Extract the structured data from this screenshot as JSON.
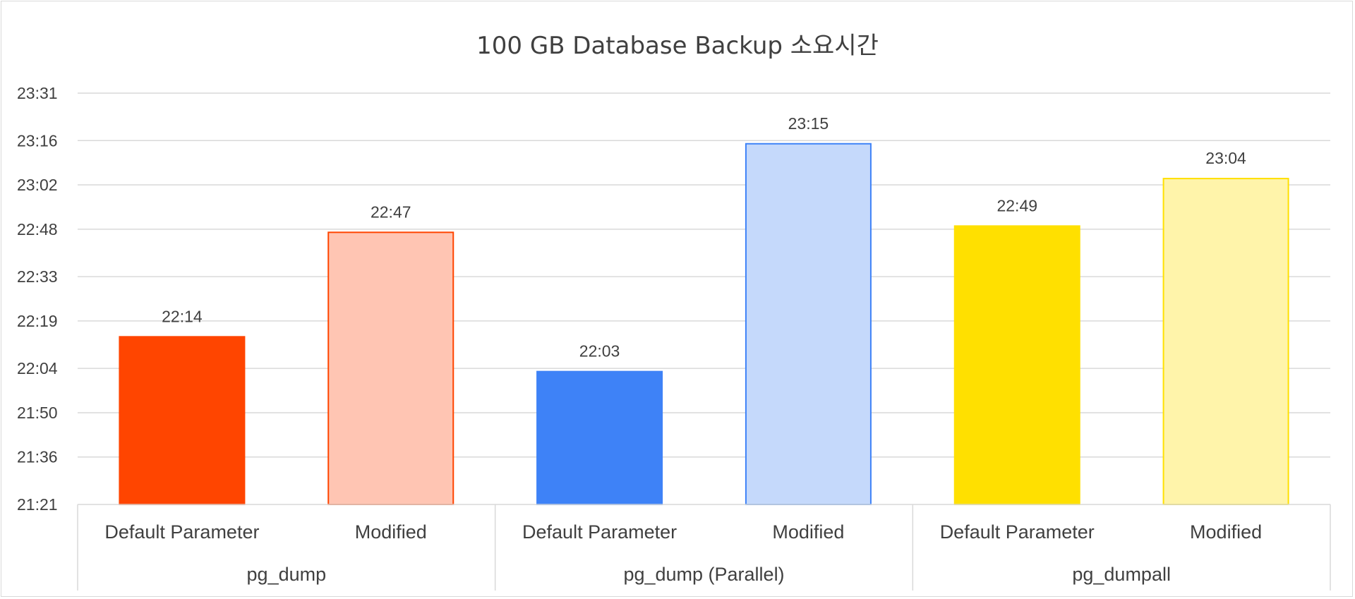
{
  "chart_data": {
    "type": "bar",
    "title": "100 GB Database Backup 소요시간",
    "xlabel": "",
    "ylabel": "",
    "y_unit": "time (HH:MM)",
    "ylim": [
      "21:21",
      "23:31"
    ],
    "y_ticks": [
      "21:21",
      "21:36",
      "21:50",
      "22:04",
      "22:19",
      "22:33",
      "22:48",
      "23:02",
      "23:16",
      "23:31"
    ],
    "grid": true,
    "legend": "none",
    "groups": [
      {
        "label": "pg_dump",
        "bars": [
          {
            "label": "Default Parameter",
            "value": "22:14",
            "fill": "#FF4500",
            "stroke": "#FF4500"
          },
          {
            "label": "Modified",
            "value": "22:47",
            "fill": "#FFC5B3",
            "stroke": "#FF4500"
          }
        ]
      },
      {
        "label": "pg_dump (Parallel)",
        "bars": [
          {
            "label": "Default Parameter",
            "value": "22:03",
            "fill": "#3E82F7",
            "stroke": "#3E82F7"
          },
          {
            "label": "Modified",
            "value": "23:15",
            "fill": "#C5D9FB",
            "stroke": "#3E82F7"
          }
        ]
      },
      {
        "label": "pg_dumpall",
        "bars": [
          {
            "label": "Default Parameter",
            "value": "22:49",
            "fill": "#FFE000",
            "stroke": "#FFE000"
          },
          {
            "label": "Modified",
            "value": "23:04",
            "fill": "#FFF4AA",
            "stroke": "#FFE000"
          }
        ]
      }
    ]
  }
}
